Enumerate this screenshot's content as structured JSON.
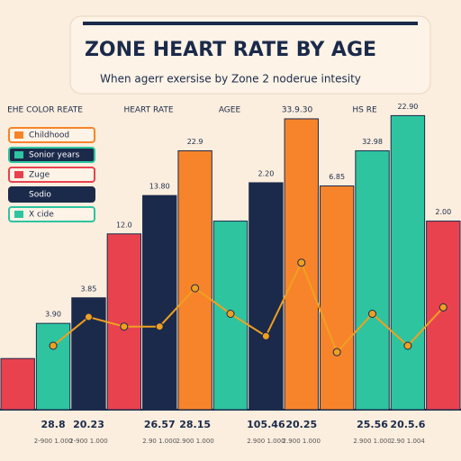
{
  "chart_data": {
    "type": "bar",
    "title": "ZONE HEART RATE BY AGE",
    "subtitle": "When agerr exersise by Zone 2 noderue intesity",
    "header_labels": [
      "EHE COLOR REATE",
      "HEART RATE",
      "AGEE",
      "33.9.30",
      "HS RE"
    ],
    "legend_items": [
      {
        "name": "Childhood",
        "color": "#f7842a"
      },
      {
        "name": "Sonior years",
        "color": "#2ec4a0"
      },
      {
        "name": "Zuge",
        "color": "#e8424f"
      },
      {
        "name": "Sodio",
        "color": "#1b2a4a"
      },
      {
        "name": "X cide",
        "color": "#2ec4a0"
      }
    ],
    "categories": [
      null,
      "28.8",
      "20.23",
      null,
      "26.57",
      "28.15",
      null,
      "105.46",
      "20.25",
      null,
      "25.56",
      "20.5.6",
      null
    ],
    "sublabels": [
      null,
      "2-900 1.000",
      "2-900 1.000",
      null,
      "2.90 1.000",
      "2.900 1.000",
      null,
      "2.900 1.000",
      "2.900 1.000",
      null,
      "2.900 1.000",
      "2.90 1.004",
      null
    ],
    "annotations": [
      null,
      "3.90",
      "3.85",
      "12.0",
      "13.80",
      "22.9",
      null,
      "2.20",
      null,
      "6.85",
      "32.98",
      "22.90",
      "2.00"
    ],
    "values": [
      16,
      27,
      35,
      55,
      67,
      81,
      59,
      71,
      91,
      70,
      81,
      92,
      59
    ],
    "colors": [
      "#e8424f",
      "#2ec4a0",
      "#1b2a4a",
      "#e8424f",
      "#1b2a4a",
      "#f7842a",
      "#2ec4a0",
      "#1b2a4a",
      "#f7842a",
      "#f7842a",
      "#2ec4a0",
      "#2ec4a0",
      "#e8424f"
    ],
    "line": {
      "color": "#f0a020",
      "values": [
        null,
        20,
        29,
        26,
        26,
        38,
        30,
        23,
        46,
        18,
        30,
        20,
        32
      ]
    },
    "ylim": [
      0,
      100
    ]
  }
}
